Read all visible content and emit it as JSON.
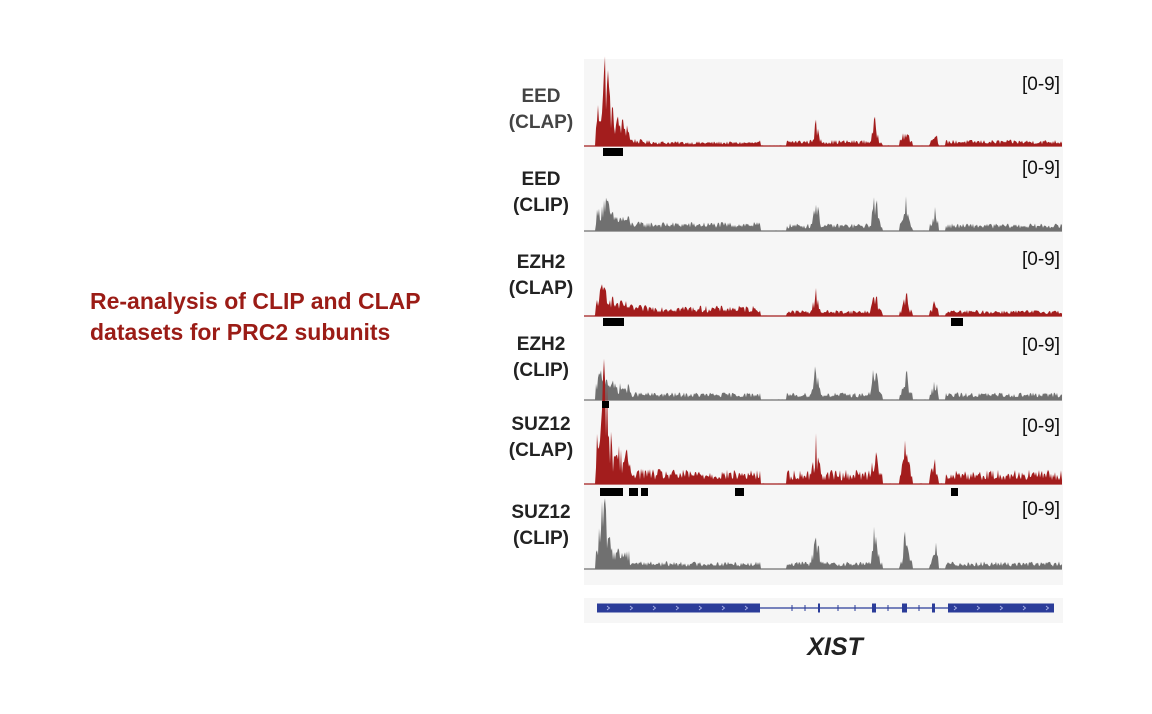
{
  "headline": {
    "line1": "Re-analysis of CLIP and CLAP",
    "line2": "datasets for PRC2 subunits"
  },
  "gene": {
    "name": "XIST"
  },
  "colors": {
    "clap": "#a31d1d",
    "clip": "#707070",
    "panel_bg": "#f6f6f6",
    "peak_call": "#000000",
    "gene_model": "#2b3c99",
    "headline": "#9b1c16"
  },
  "tracks": [
    {
      "protein": "EED",
      "assay": "(CLAP)",
      "range": "[0-9]",
      "kind": "clap",
      "label_color": "#444444"
    },
    {
      "protein": "EED",
      "assay": "(CLIP)",
      "range": "[0-9]",
      "kind": "clip",
      "label_color": "#222222"
    },
    {
      "protein": "EZH2",
      "assay": "(CLAP)",
      "range": "[0-9]",
      "kind": "clap",
      "label_color": "#222222"
    },
    {
      "protein": "EZH2",
      "assay": "(CLIP)",
      "range": "[0-9]",
      "kind": "clip",
      "label_color": "#222222"
    },
    {
      "protein": "SUZ12",
      "assay": "(CLAP)",
      "range": "[0-9]",
      "kind": "clap",
      "label_color": "#222222"
    },
    {
      "protein": "SUZ12",
      "assay": "(CLIP)",
      "range": "[0-9]",
      "kind": "clip",
      "label_color": "#222222"
    }
  ]
}
